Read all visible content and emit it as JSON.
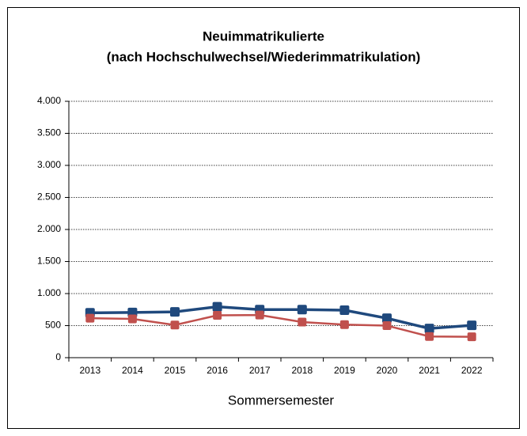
{
  "chart_data": {
    "type": "line",
    "title": "Neuimmatrikulierte",
    "subtitle": "(nach Hochschulwechsel/Wiederimmatrikulation)",
    "x_label": "Sommersemester",
    "categories": [
      "2013",
      "2014",
      "2015",
      "2016",
      "2017",
      "2018",
      "2019",
      "2020",
      "2021",
      "2022"
    ],
    "series": [
      {
        "color": "#1f497d",
        "values": [
          700,
          705,
          715,
          795,
          750,
          750,
          740,
          615,
          455,
          505
        ]
      },
      {
        "color": "#c0504d",
        "values": [
          615,
          605,
          510,
          660,
          665,
          555,
          515,
          500,
          330,
          325
        ]
      }
    ],
    "ylim": [
      0,
      4000
    ],
    "yticks": [
      0,
      500,
      {
        "value": 1000,
        "label": "1.000"
      },
      {
        "value": 1500,
        "label": "1.500"
      },
      {
        "value": 2000,
        "label": "2.000"
      },
      {
        "value": 2500,
        "label": "2.500"
      },
      {
        "value": 3000,
        "label": "3.000"
      },
      {
        "value": 3500,
        "label": "3.500"
      },
      {
        "value": 4000,
        "label": "4.000"
      }
    ],
    "grid": true
  }
}
